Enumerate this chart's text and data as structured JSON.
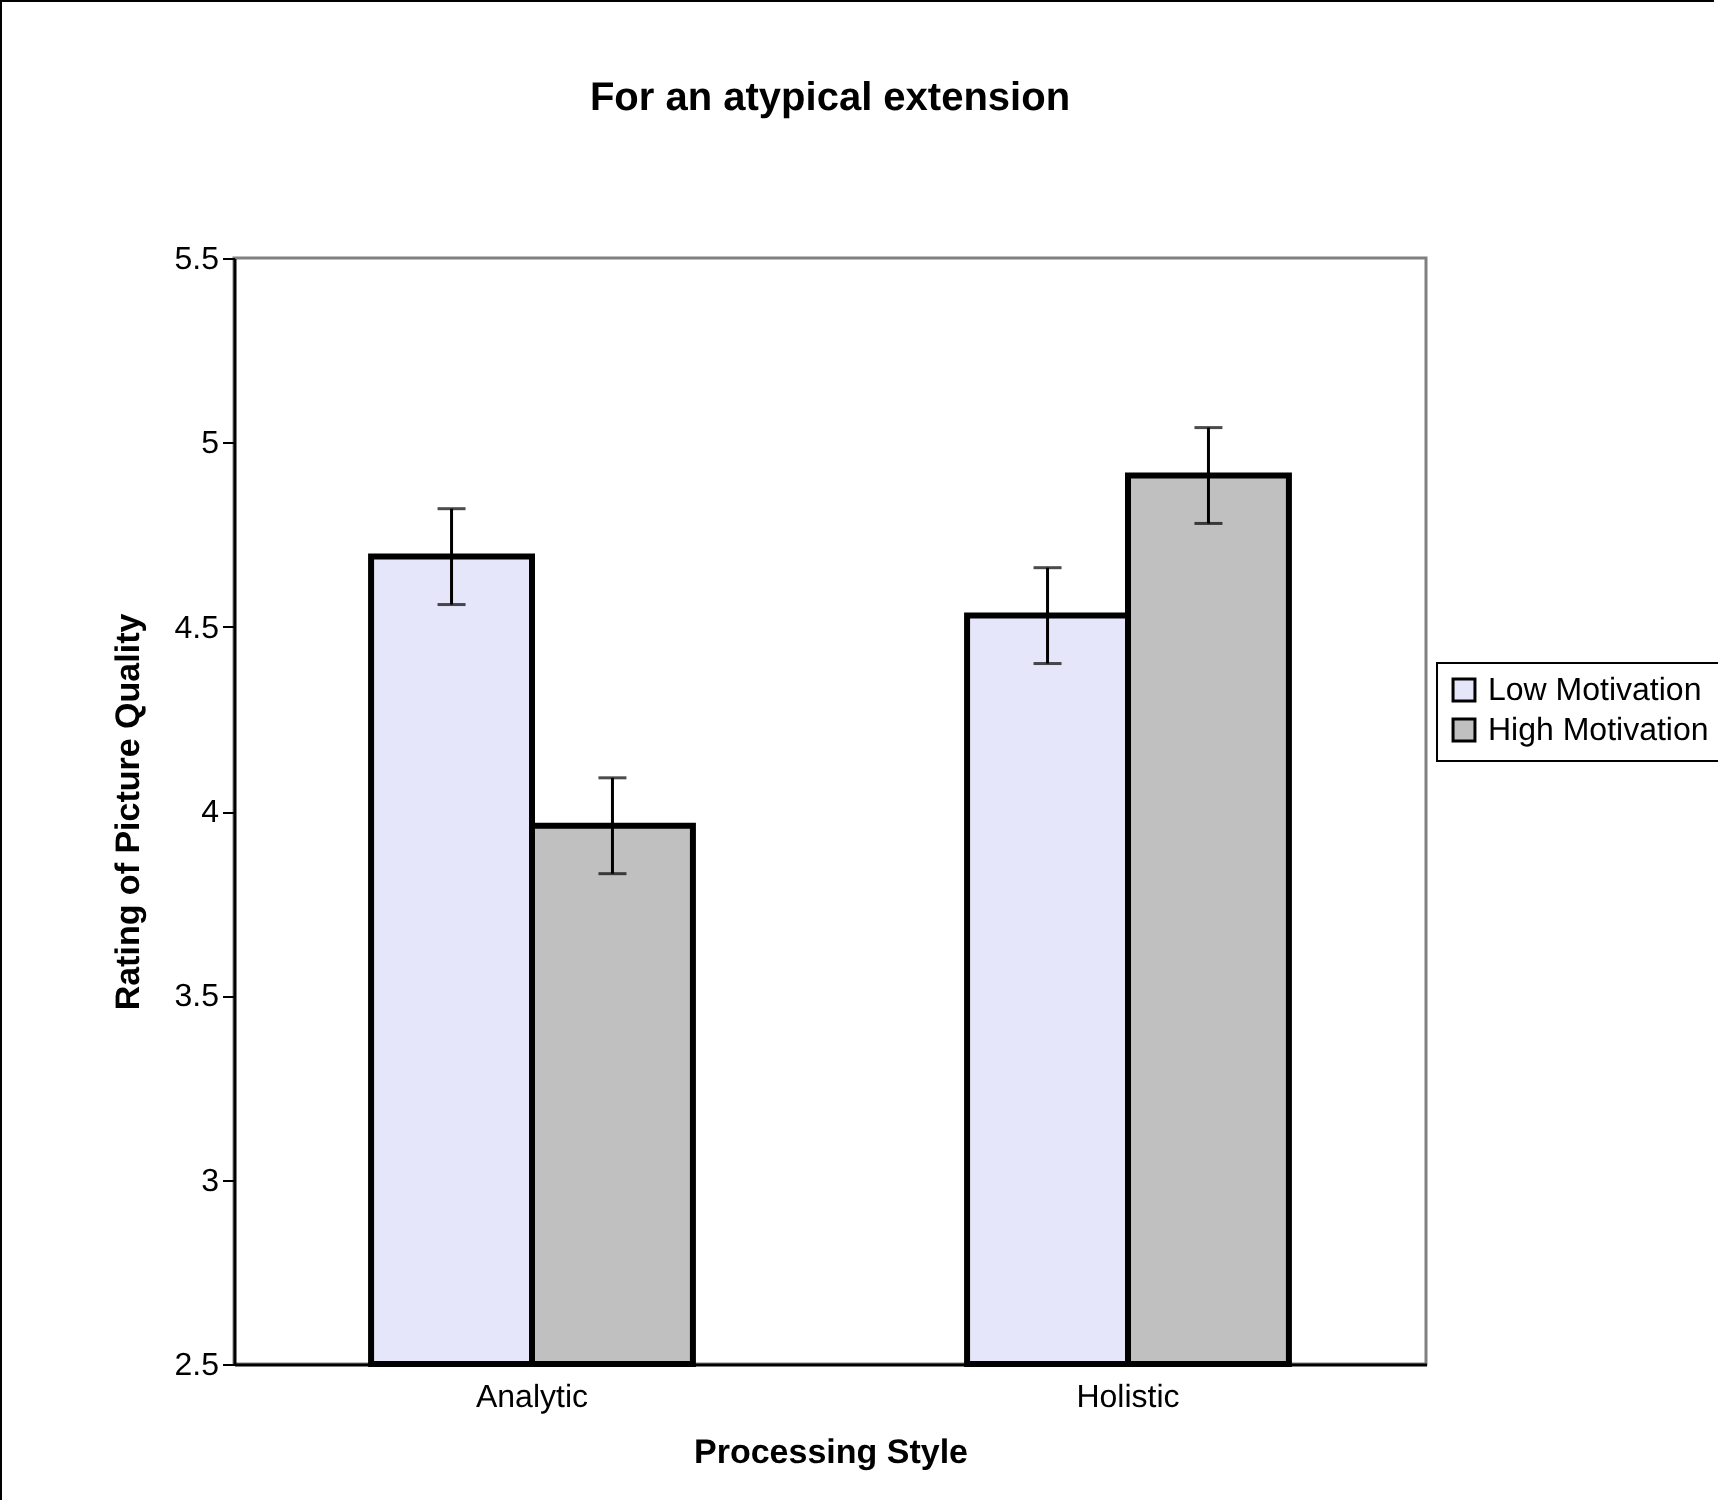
{
  "chart_data": {
    "type": "bar",
    "title": "For an atypical extension",
    "xlabel": "Processing Style",
    "ylabel": "Rating of Picture Quality",
    "categories": [
      "Analytic",
      "Holistic"
    ],
    "series": [
      {
        "name": "Low Motivation",
        "color": "#e6e6fa",
        "values": [
          4.69,
          4.53
        ],
        "errors": [
          0.13,
          0.13
        ]
      },
      {
        "name": "High Motivation",
        "color": "#c0c0c0",
        "values": [
          3.96,
          4.91
        ],
        "errors": [
          0.13,
          0.13
        ]
      }
    ],
    "ylim": [
      2.5,
      5.5
    ],
    "yticks": [
      2.5,
      3,
      3.5,
      4,
      4.5,
      5,
      5.5
    ],
    "grid": false,
    "legend": "right"
  }
}
